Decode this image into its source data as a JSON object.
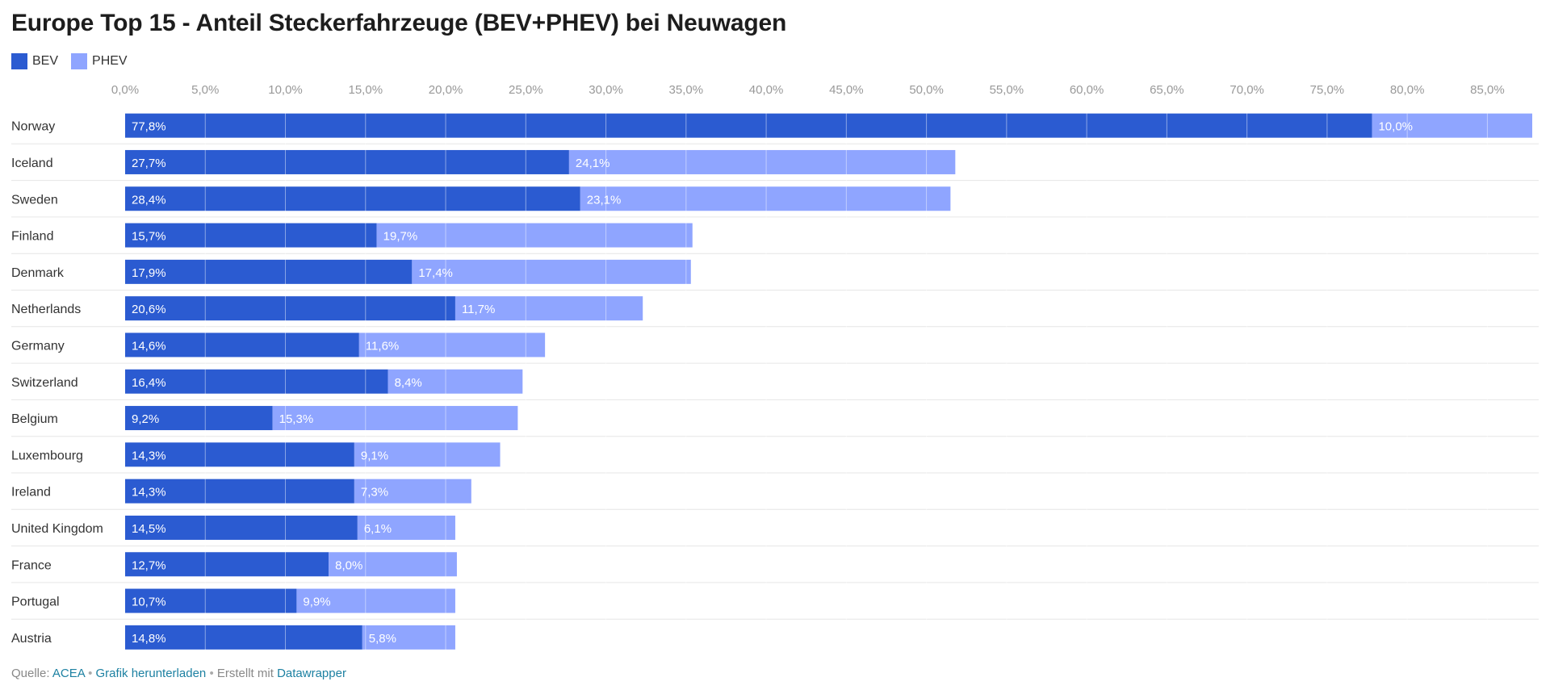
{
  "chart_data": {
    "type": "bar",
    "orientation": "horizontal",
    "stacked": true,
    "title": "Europe Top 15 - Anteil Steckerfahrzeuge (BEV+PHEV) bei Neuwagen",
    "categories": [
      "Norway",
      "Iceland",
      "Sweden",
      "Finland",
      "Denmark",
      "Netherlands",
      "Germany",
      "Switzerland",
      "Belgium",
      "Luxembourg",
      "Ireland",
      "United Kingdom",
      "France",
      "Portugal",
      "Austria"
    ],
    "series": [
      {
        "name": "BEV",
        "color": "#2b5bd1",
        "values": [
          77.8,
          27.7,
          28.4,
          15.7,
          17.9,
          20.6,
          14.6,
          16.4,
          9.2,
          14.3,
          14.3,
          14.5,
          12.7,
          10.7,
          14.8
        ],
        "labels": [
          "77,8%",
          "27,7%",
          "28,4%",
          "15,7%",
          "17,9%",
          "20,6%",
          "14,6%",
          "16,4%",
          "9,2%",
          "14,3%",
          "14,3%",
          "14,5%",
          "12,7%",
          "10,7%",
          "14,8%"
        ]
      },
      {
        "name": "PHEV",
        "color": "#8fa5ff",
        "values": [
          10.0,
          24.1,
          23.1,
          19.7,
          17.4,
          11.7,
          11.6,
          8.4,
          15.3,
          9.1,
          7.3,
          6.1,
          8.0,
          9.9,
          5.8
        ],
        "labels": [
          "10,0%",
          "24,1%",
          "23,1%",
          "19,7%",
          "17,4%",
          "11,7%",
          "11,6%",
          "8,4%",
          "15,3%",
          "9,1%",
          "7,3%",
          "6,1%",
          "8,0%",
          "9,9%",
          "5,8%"
        ]
      }
    ],
    "xlim": [
      0,
      87.8
    ],
    "ticks": [
      0,
      5,
      10,
      15,
      20,
      25,
      30,
      35,
      40,
      45,
      50,
      55,
      60,
      65,
      70,
      75,
      80,
      85
    ],
    "tick_labels": [
      "0,0%",
      "5,0%",
      "10,0%",
      "15,0%",
      "20,0%",
      "25,0%",
      "30,0%",
      "35,0%",
      "40,0%",
      "45,0%",
      "50,0%",
      "55,0%",
      "60,0%",
      "65,0%",
      "70,0%",
      "75,0%",
      "80,0%",
      "85,0%"
    ],
    "axis_position": "top",
    "grid": true,
    "legend": "top-left"
  },
  "footer": {
    "source_prefix": "Quelle:",
    "source_link": "ACEA",
    "separator": "•",
    "download_link": "Grafik herunterladen",
    "made_with": "Erstellt mit",
    "tool_link": "Datawrapper"
  }
}
